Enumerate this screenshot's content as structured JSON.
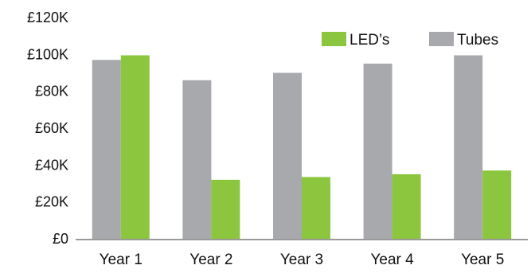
{
  "chart_data": {
    "type": "bar",
    "categories": [
      "Year 1",
      "Year 2",
      "Year 3",
      "Year 4",
      "Year 5"
    ],
    "series": [
      {
        "name": "Tubes",
        "values": [
          97000,
          86000,
          90000,
          95000,
          99500
        ]
      },
      {
        "name": "LED’s",
        "values": [
          99500,
          32000,
          33500,
          35000,
          37000
        ]
      }
    ],
    "ylim": [
      0,
      120000
    ],
    "yticks": [
      0,
      20000,
      40000,
      60000,
      80000,
      100000,
      120000
    ],
    "ytick_labels": [
      "£0",
      "£20K",
      "£40K",
      "£60K",
      "£80K",
      "£100K",
      "£120K"
    ],
    "legend": {
      "position": "top-right",
      "items": [
        {
          "label": "LED’s",
          "color": "#8cc63f"
        },
        {
          "label": "Tubes",
          "color": "#a7a9ac"
        }
      ]
    },
    "grid": false,
    "colors": {
      "Tubes": "#a7a9ac",
      "LED’s": "#8cc63f"
    }
  }
}
